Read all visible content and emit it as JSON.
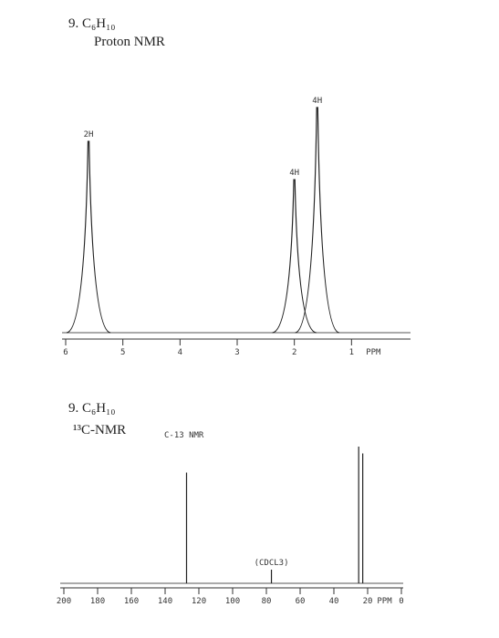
{
  "chart_data": [
    {
      "type": "line",
      "title": "9. C₆H₁₀",
      "subtitle": "Proton NMR",
      "xlabel": "PPM",
      "x": [
        5.6,
        2.0,
        1.6
      ],
      "values": [
        85,
        68,
        100
      ],
      "annotations": [
        "2H",
        "4H",
        "4H"
      ],
      "xlim": [
        6,
        0
      ],
      "xticks": [
        6,
        5,
        4,
        3,
        2,
        1
      ],
      "ylim": [
        0,
        100
      ],
      "color": "#222222"
    },
    {
      "type": "line",
      "title": "9. C₆H₁₀",
      "subtitle": "¹³C-NMR",
      "label": "C-13 NMR",
      "xlabel": "PPM",
      "x": [
        127.3,
        77,
        25.3,
        22.9
      ],
      "values": [
        81,
        10,
        100,
        95
      ],
      "annotations": [
        null,
        "(CDCL3)",
        null,
        null
      ],
      "xlim": [
        200,
        0
      ],
      "xticks": [
        200,
        180,
        160,
        140,
        120,
        100,
        80,
        60,
        40,
        20,
        0
      ],
      "ylim": [
        0,
        100
      ],
      "color": "#222222"
    }
  ]
}
